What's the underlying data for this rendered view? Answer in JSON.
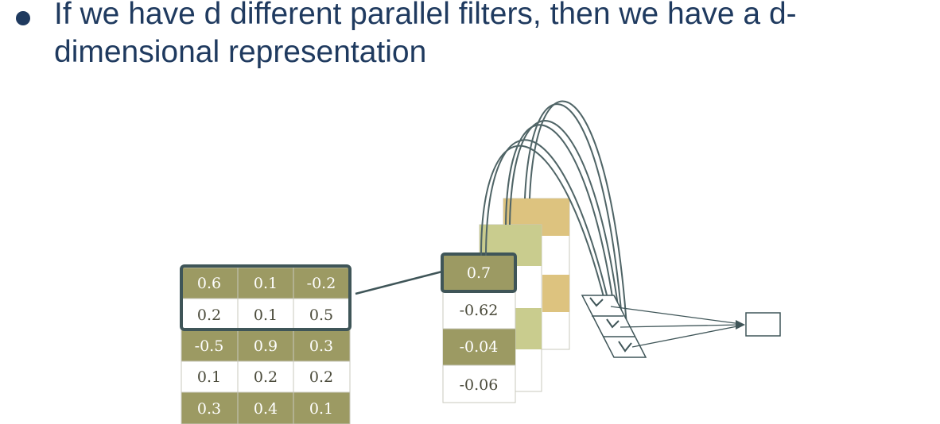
{
  "slide": {
    "bullet_text": "If we have d different parallel filters, then we have a d-dimensional representation"
  },
  "diagram": {
    "input_matrix": [
      [
        "0.6",
        "0.1",
        "-0.2"
      ],
      [
        "0.2",
        "0.1",
        "0.5"
      ],
      [
        "-0.5",
        "0.9",
        "0.3"
      ],
      [
        "0.1",
        "0.2",
        "0.2"
      ],
      [
        "0.3",
        "0.4",
        "0.1"
      ]
    ],
    "output_column": [
      "0.7",
      "-0.62",
      "-0.04",
      "-0.06"
    ],
    "colors": {
      "olive": "#9c9a63",
      "olive_light": "#c9cc8e",
      "tan": "#ddc37f",
      "border": "#c8c8bc",
      "highlight": "#3f5558",
      "bullet": "#1f3a5f"
    }
  }
}
